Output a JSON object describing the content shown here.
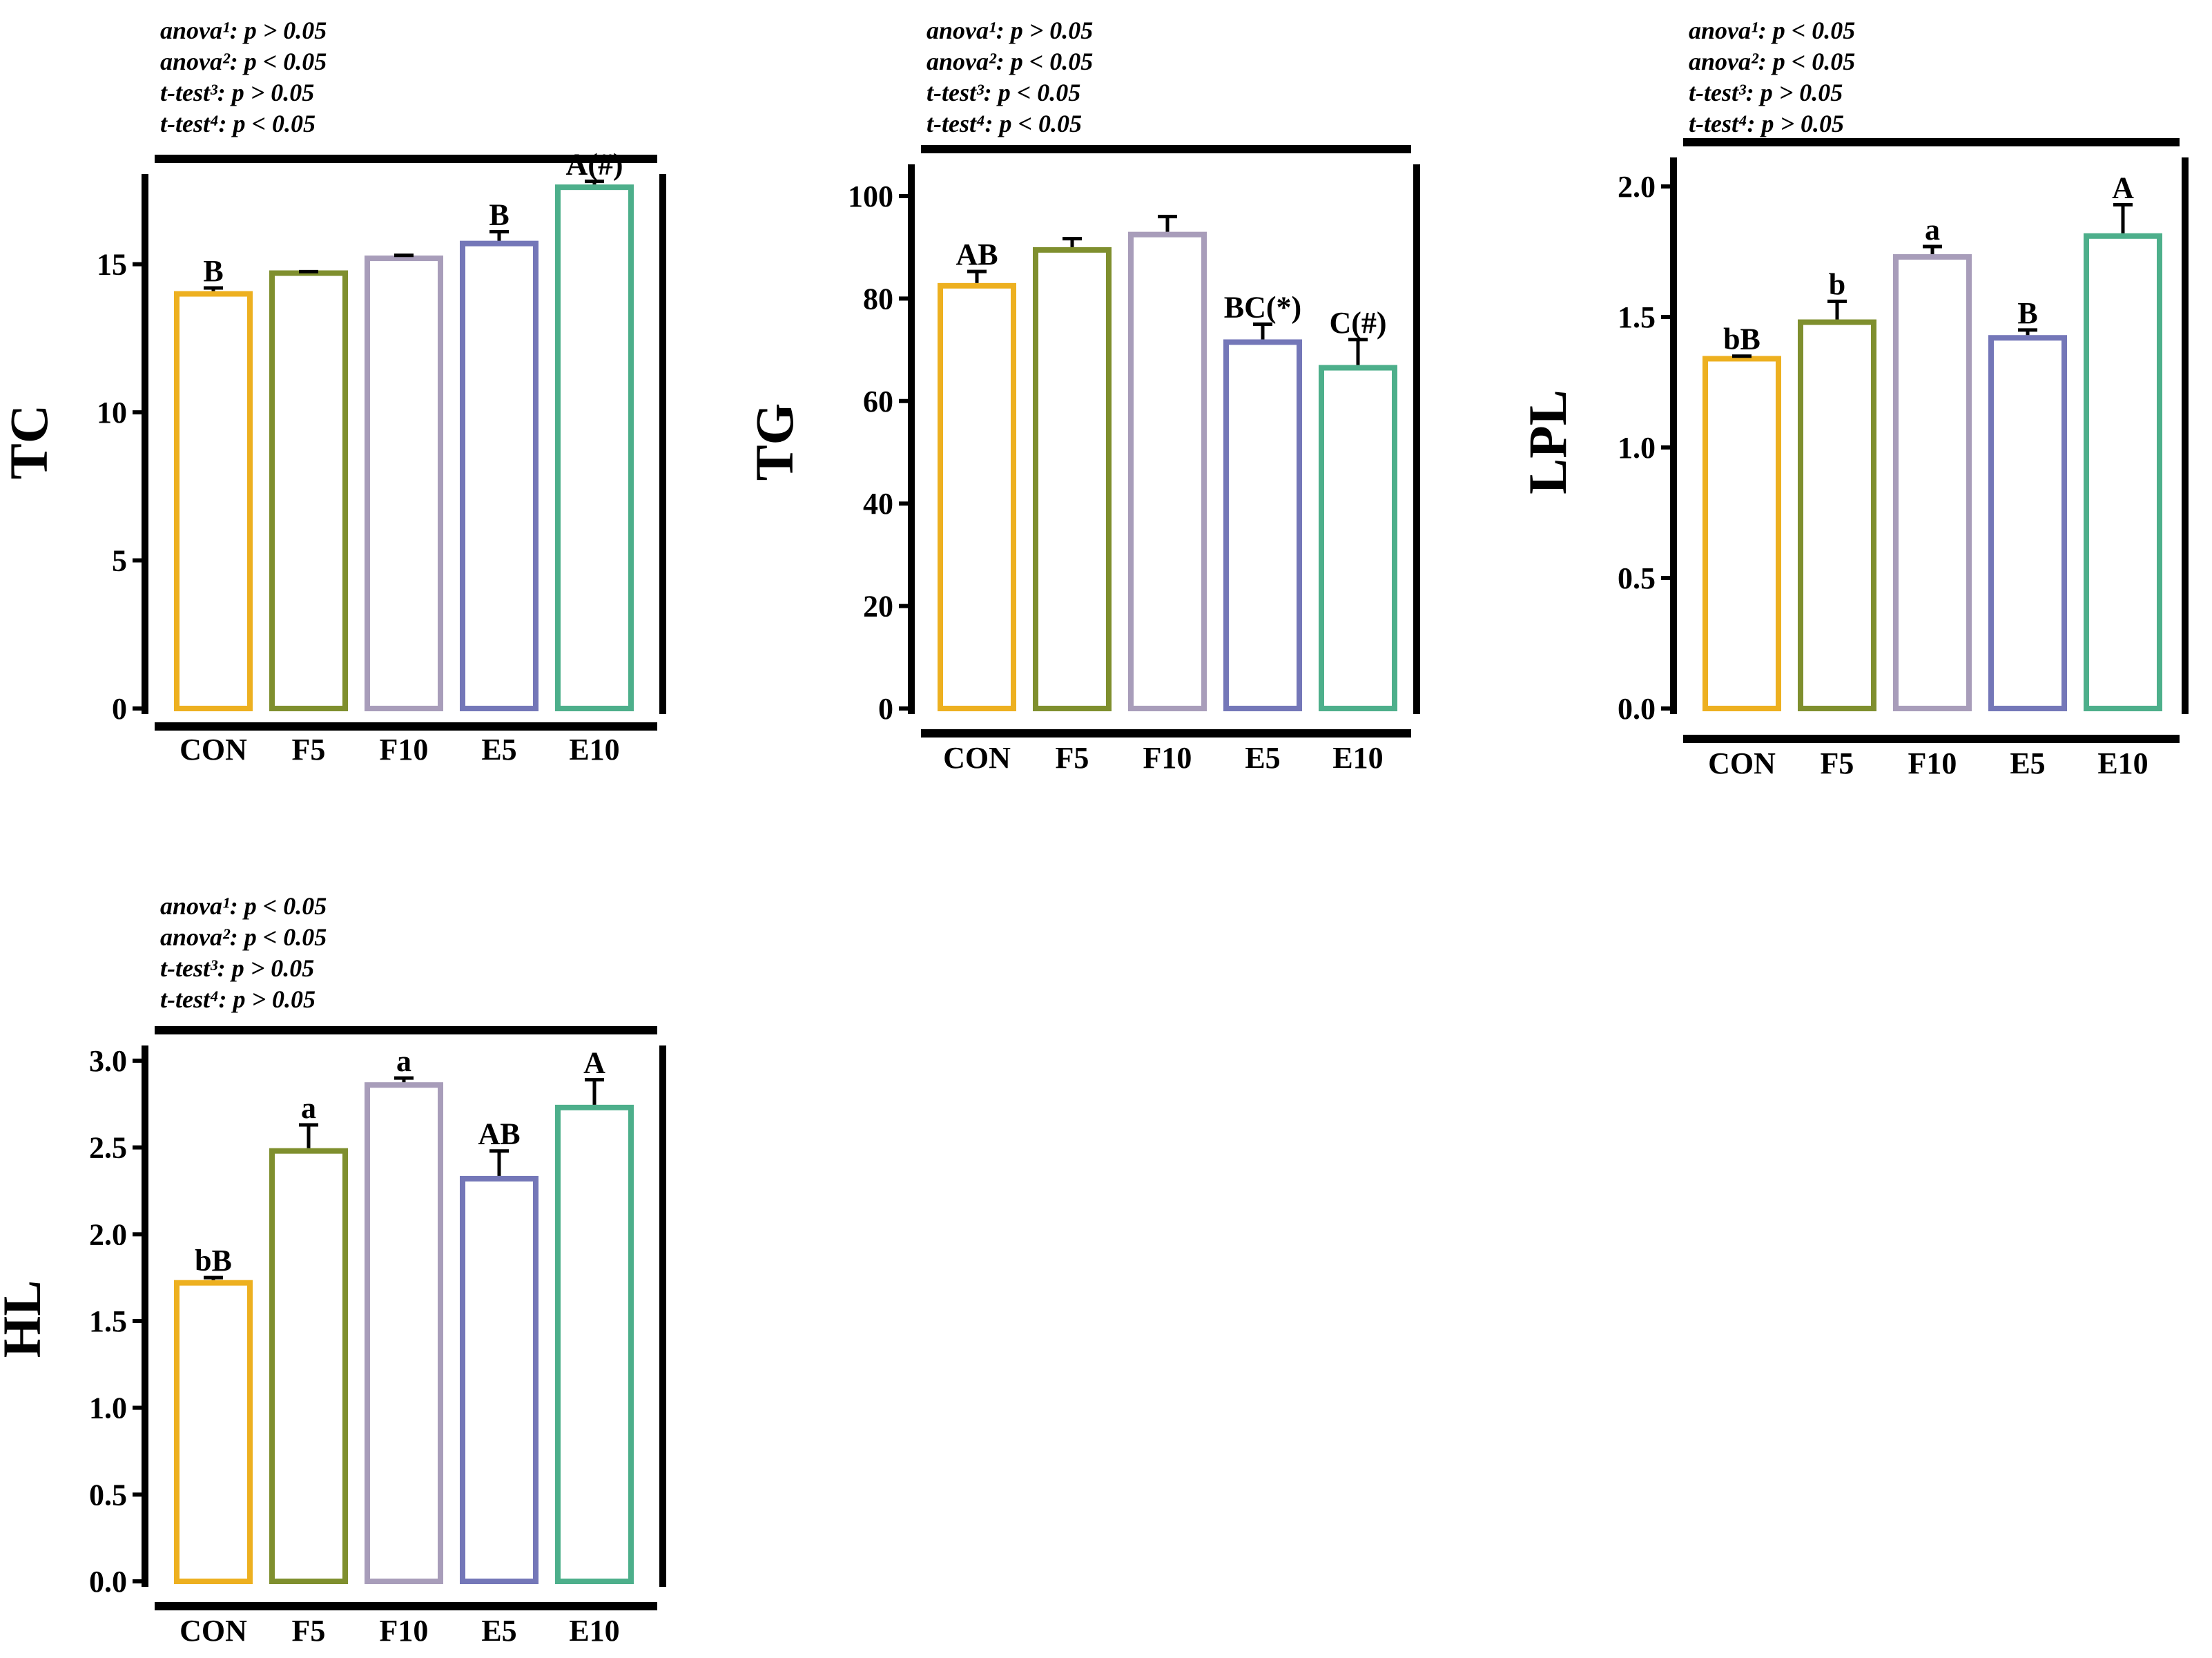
{
  "colors": {
    "CON": "#EDB020",
    "F5": "#7F8F2E",
    "F10": "#A89DBA",
    "E5": "#7477B8",
    "E10": "#4DAF8B",
    "axis": "#000000"
  },
  "chart_data": [
    {
      "id": "tc",
      "type": "bar",
      "ylabel": "TC",
      "categories": [
        "CON",
        "F5",
        "F10",
        "E5",
        "E10"
      ],
      "values": [
        14.0,
        14.7,
        15.2,
        15.7,
        17.6
      ],
      "errors": [
        0.2,
        0.05,
        0.1,
        0.4,
        0.2
      ],
      "ylim": [
        0,
        18
      ],
      "yticks": [
        0,
        5,
        10,
        15
      ],
      "ytick_labels": [
        "0",
        "5",
        "10",
        "15"
      ],
      "sig_labels": [
        "B",
        "",
        "",
        "B",
        "A(#)"
      ],
      "stats": [
        "anova¹: p > 0.05",
        "anova²: p < 0.05",
        "t-test³: p > 0.05",
        "t-test⁴: p < 0.05"
      ]
    },
    {
      "id": "tg",
      "type": "bar",
      "ylabel": "TG",
      "categories": [
        "CON",
        "F5",
        "F10",
        "E5",
        "E10"
      ],
      "values": [
        82.5,
        89.5,
        92.5,
        71.5,
        66.5
      ],
      "errors": [
        2.8,
        2.2,
        3.5,
        3.5,
        5.5
      ],
      "ylim": [
        0,
        100
      ],
      "yticks": [
        0,
        20,
        40,
        60,
        80,
        100
      ],
      "ytick_labels": [
        "0",
        "20",
        "40",
        "60",
        "80",
        "100"
      ],
      "sig_labels": [
        "AB",
        "",
        "",
        "BC(*)",
        "C(#)"
      ],
      "stats": [
        "anova¹: p > 0.05",
        "anova²: p < 0.05",
        "t-test³: p < 0.05",
        "t-test⁴: p < 0.05"
      ]
    },
    {
      "id": "lpl",
      "type": "bar",
      "ylabel": "LPL",
      "categories": [
        "CON",
        "F5",
        "F10",
        "E5",
        "E10"
      ],
      "values": [
        1.34,
        1.48,
        1.73,
        1.42,
        1.81
      ],
      "errors": [
        0.01,
        0.08,
        0.04,
        0.03,
        0.12
      ],
      "ylim": [
        0,
        2.0
      ],
      "yticks": [
        0,
        0.5,
        1.0,
        1.5,
        2.0
      ],
      "ytick_labels": [
        "0.0",
        "0.5",
        "1.0",
        "1.5",
        "2.0"
      ],
      "sig_labels": [
        "bB",
        "b",
        "a",
        "B",
        "A"
      ],
      "stats": [
        "anova¹: p < 0.05",
        "anova²: p < 0.05",
        "t-test³: p > 0.05",
        "t-test⁴: p > 0.05"
      ]
    },
    {
      "id": "hl",
      "type": "bar",
      "ylabel": "HL",
      "categories": [
        "CON",
        "F5",
        "F10",
        "E5",
        "E10"
      ],
      "values": [
        1.72,
        2.48,
        2.86,
        2.32,
        2.73
      ],
      "errors": [
        0.03,
        0.15,
        0.04,
        0.16,
        0.16
      ],
      "ylim": [
        0,
        3.0
      ],
      "yticks": [
        0,
        0.5,
        1.0,
        1.5,
        2.0,
        2.5,
        3.0
      ],
      "ytick_labels": [
        "0.0",
        "0.5",
        "1.0",
        "1.5",
        "2.0",
        "2.5",
        "3.0"
      ],
      "sig_labels": [
        "bB",
        "a",
        "a",
        "AB",
        "A"
      ],
      "stats": [
        "anova¹: p < 0.05",
        "anova²: p < 0.05",
        "t-test³: p > 0.05",
        "t-test⁴: p > 0.05"
      ]
    }
  ]
}
